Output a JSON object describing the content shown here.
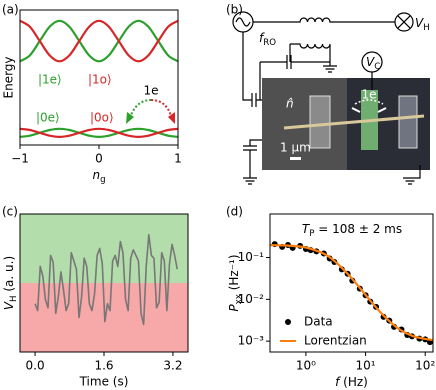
{
  "chart_data": [
    {
      "type": "line",
      "label": "(a)",
      "ylabel": "Energy",
      "xlabel": {
        "symbol": "n",
        "sub": "g"
      },
      "smooth": true,
      "x": [
        -1,
        -0.875,
        -0.75,
        -0.625,
        -0.5,
        -0.375,
        -0.25,
        -0.125,
        0,
        0.125,
        0.25,
        0.375,
        0.5,
        0.625,
        0.75,
        0.875,
        1
      ],
      "xlim": [
        -1,
        1
      ],
      "xticks": [
        {
          "value": -1,
          "label": "−1"
        },
        0,
        1
      ],
      "ylim": [
        0,
        1
      ],
      "yticks": [],
      "series": [
        {
          "name": "|1e⟩",
          "color": "#2ca02c",
          "values": [
            0.62,
            0.664,
            0.77,
            0.876,
            0.92,
            0.876,
            0.77,
            0.664,
            0.62,
            0.664,
            0.77,
            0.876,
            0.92,
            0.876,
            0.77,
            0.664,
            0.62
          ]
        },
        {
          "name": "|1o⟩",
          "color": "#d62728",
          "values": [
            0.92,
            0.876,
            0.77,
            0.664,
            0.62,
            0.664,
            0.77,
            0.876,
            0.92,
            0.876,
            0.77,
            0.664,
            0.62,
            0.664,
            0.77,
            0.876,
            0.92
          ]
        },
        {
          "name": "|0e⟩",
          "color": "#2ca02c",
          "values": [
            0.06,
            0.069,
            0.09,
            0.111,
            0.12,
            0.111,
            0.09,
            0.069,
            0.06,
            0.069,
            0.09,
            0.111,
            0.12,
            0.111,
            0.09,
            0.069,
            0.06
          ]
        },
        {
          "name": "|0o⟩",
          "color": "#d62728",
          "values": [
            0.12,
            0.111,
            0.09,
            0.069,
            0.06,
            0.069,
            0.09,
            0.111,
            0.12,
            0.111,
            0.09,
            0.069,
            0.06,
            0.069,
            0.09,
            0.111,
            0.12
          ]
        }
      ],
      "annotation": "1e"
    },
    {
      "type": "line",
      "label": "(c)",
      "ylabel": {
        "symbol": "V",
        "sub": "H",
        "text": " (a. u.)"
      },
      "xlabel": "Time (s)",
      "smooth": false,
      "x": [
        0,
        0.06,
        0.12,
        0.18,
        0.24,
        0.3,
        0.36,
        0.42,
        0.48,
        0.54,
        0.6,
        0.66,
        0.72,
        0.78,
        0.84,
        0.9,
        0.96,
        1.02,
        1.08,
        1.14,
        1.2,
        1.26,
        1.32,
        1.38,
        1.44,
        1.5,
        1.56,
        1.62,
        1.68,
        1.74,
        1.8,
        1.86,
        1.92,
        1.98,
        2.04,
        2.1,
        2.16,
        2.22,
        2.28,
        2.34,
        2.4,
        2.46,
        2.52,
        2.58,
        2.64,
        2.7,
        2.76,
        2.82,
        2.88,
        2.94,
        3.0,
        3.06,
        3.12,
        3.18,
        3.24,
        3.3
      ],
      "xlim": [
        -0.35,
        3.55
      ],
      "xticks": [
        {
          "value": 0,
          "label": "0.0"
        },
        1.6,
        3.2
      ],
      "ylim": [
        0,
        1
      ],
      "yticks": [],
      "bands": [
        {
          "from": 0.5,
          "to": 1,
          "color": "#b3deab"
        },
        {
          "from": 0,
          "to": 0.5,
          "color": "#f7a8a8"
        }
      ],
      "series": [
        {
          "color": "#777777",
          "values": [
            0.35,
            0.3,
            0.62,
            0.55,
            0.38,
            0.32,
            0.7,
            0.65,
            0.28,
            0.4,
            0.58,
            0.45,
            0.3,
            0.35,
            0.72,
            0.66,
            0.6,
            0.25,
            0.4,
            0.68,
            0.62,
            0.35,
            0.3,
            0.42,
            0.7,
            0.75,
            0.64,
            0.22,
            0.35,
            0.3,
            0.66,
            0.7,
            0.62,
            0.8,
            0.72,
            0.38,
            0.3,
            0.68,
            0.74,
            0.7,
            0.66,
            0.28,
            0.2,
            0.62,
            0.85,
            0.7,
            0.68,
            0.32,
            0.36,
            0.72,
            0.66,
            0.3,
            0.64,
            0.78,
            0.7,
            0.6
          ]
        }
      ]
    },
    {
      "type": "scatter",
      "label": "(d)",
      "ylabel": {
        "symbol": "P",
        "sub": "xx",
        "text": " (Hz⁻¹)"
      },
      "xlabel": {
        "symbol": "f",
        "text": " (Hz)"
      },
      "smooth": true,
      "xscale": "log",
      "yscale": "log",
      "xlim": [
        0.25,
        135
      ],
      "xticks": [
        {
          "value": 1,
          "label": "10⁰"
        },
        {
          "value": 10,
          "label": "10¹"
        },
        {
          "value": 100,
          "label": "10²"
        }
      ],
      "ylim": [
        0.00055,
        1.1
      ],
      "yticks": [
        {
          "value": 0.001,
          "label": "10⁻³"
        },
        {
          "value": 0.01,
          "label": "10⁻²"
        },
        {
          "value": 0.1,
          "label": "10⁻¹"
        }
      ],
      "legend": "lower left",
      "series": [
        {
          "name": "Data",
          "color": "#000000",
          "style": "points",
          "x": [
            0.3,
            0.4,
            0.5,
            0.6,
            0.8,
            1,
            1.2,
            1.5,
            2,
            2.5,
            3,
            4,
            5,
            6,
            8,
            10,
            12,
            15,
            20,
            25,
            30,
            40,
            50,
            60,
            80,
            100,
            120
          ],
          "values": [
            0.21,
            0.18,
            0.2,
            0.17,
            0.19,
            0.16,
            0.15,
            0.14,
            0.125,
            0.095,
            0.078,
            0.052,
            0.041,
            0.028,
            0.018,
            0.0125,
            0.0088,
            0.0066,
            0.0038,
            0.0031,
            0.0022,
            0.0019,
            0.0014,
            0.0013,
            0.00115,
            0.0011,
            0.00095
          ]
        },
        {
          "name": "Lorentzian",
          "color": "#ff7f0e",
          "style": "line",
          "x": [
            0.25,
            0.5,
            1,
            2,
            3,
            5,
            8,
            12,
            20,
            35,
            60,
            100,
            135
          ],
          "values": [
            0.198,
            0.193,
            0.173,
            0.123,
            0.083,
            0.041,
            0.0188,
            0.0093,
            0.0041,
            0.00202,
            0.00135,
            0.00113,
            0.00107
          ]
        }
      ],
      "annotation": {
        "symbol": "T",
        "sub": "P",
        "text": " = 108 ± 2 ms"
      }
    }
  ],
  "diagram": {
    "label": "(b)",
    "source": {
      "symbol": "f",
      "sub": "RO"
    },
    "hall_voltage": {
      "symbol": "V",
      "sub": "H"
    },
    "gate_voltage": {
      "symbol": "V",
      "sub": "C"
    },
    "operator": "n̂",
    "charge": "1e",
    "scale": "1 µm"
  }
}
